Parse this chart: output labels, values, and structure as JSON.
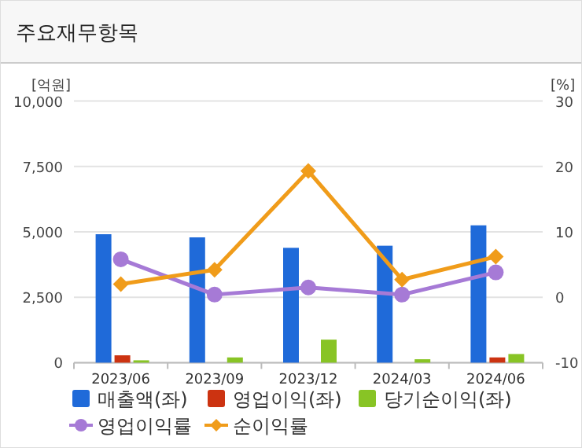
{
  "chart_data": {
    "type": "bar",
    "title": "주요재무항목",
    "ylabel": "[억원]",
    "y2label": "[%]",
    "categories": [
      "2023/06",
      "2023/09",
      "2023/12",
      "2024/03",
      "2024/06"
    ],
    "series": [
      {
        "name": "매출액(좌)",
        "color": "#1f6ad9",
        "values": [
          4910,
          4790,
          4390,
          4470,
          5250
        ]
      },
      {
        "name": "영업이익(좌)",
        "color": "#cc3311",
        "values": [
          280,
          null,
          null,
          null,
          200
        ]
      },
      {
        "name": "당기순이익(좌)",
        "color": "#88c425",
        "values": [
          90,
          200,
          880,
          130,
          330
        ]
      },
      {
        "name": "영업이익률",
        "type": "line",
        "axis": "y2",
        "color": "#a67ad6",
        "marker": "circle",
        "values": [
          5.8,
          0.4,
          1.5,
          0.4,
          3.8
        ]
      },
      {
        "name": "순이익률",
        "type": "line",
        "axis": "y2",
        "color": "#f09c1a",
        "marker": "diamond",
        "values": [
          2.0,
          4.2,
          19.3,
          2.7,
          6.2
        ]
      }
    ],
    "ylim": [
      0,
      10000
    ],
    "yticks": [
      {
        "value": 0,
        "label": "0"
      },
      {
        "value": 2500,
        "label": "2,500"
      },
      {
        "value": 5000,
        "label": "5,000"
      },
      {
        "value": 7500,
        "label": "7,500"
      },
      {
        "value": 10000,
        "label": "10,000"
      }
    ],
    "y2lim": [
      -10,
      30
    ],
    "y2ticks": [
      -10,
      0,
      10,
      20,
      30
    ],
    "grid": "y",
    "legend": "bottom"
  }
}
